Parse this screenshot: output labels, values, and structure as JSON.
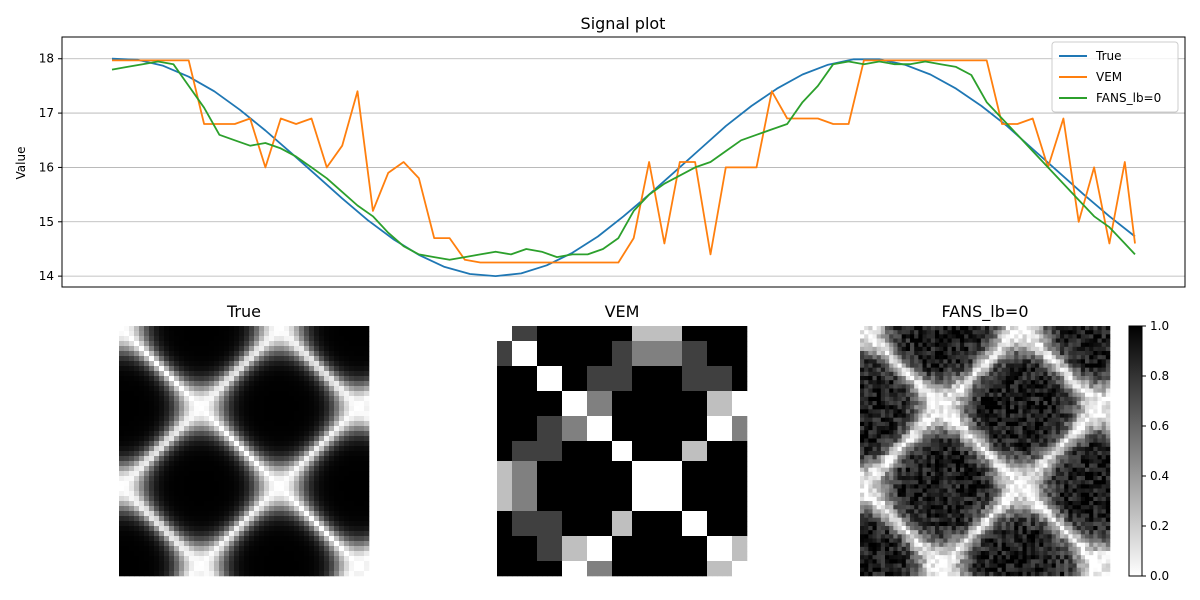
{
  "chart_data": [
    {
      "type": "line",
      "title": "Signal plot",
      "xlabel": "",
      "ylabel": "Value",
      "xlim": [
        0,
        200
      ],
      "ylim": [
        13.8,
        18.4
      ],
      "yticks": [
        14,
        15,
        16,
        17,
        18
      ],
      "grid": "horizontal",
      "legend_position": "top-right",
      "series": [
        {
          "name": "True",
          "color": "#1f77b4",
          "x": [
            0,
            5,
            10,
            15,
            20,
            25,
            30,
            35,
            40,
            45,
            50,
            55,
            60,
            65,
            70,
            75,
            80,
            85,
            90,
            95,
            100,
            105,
            110,
            115,
            120,
            125,
            130,
            135,
            140,
            145,
            150,
            155,
            160,
            165,
            170,
            175,
            180,
            185,
            190,
            195,
            200
          ],
          "y": [
            18.0,
            17.98,
            17.87,
            17.67,
            17.4,
            17.06,
            16.68,
            16.27,
            15.85,
            15.43,
            15.03,
            14.68,
            14.39,
            14.17,
            14.04,
            14.0,
            14.05,
            14.2,
            14.43,
            14.73,
            15.1,
            15.5,
            15.92,
            16.34,
            16.76,
            17.13,
            17.45,
            17.71,
            17.89,
            17.99,
            17.99,
            17.89,
            17.71,
            17.45,
            17.13,
            16.76,
            16.34,
            15.92,
            15.5,
            15.1,
            14.73
          ]
        },
        {
          "name": "VEM",
          "color": "#ff7f0e",
          "x": [
            0,
            3,
            6,
            9,
            12,
            15,
            18,
            21,
            24,
            27,
            30,
            33,
            36,
            39,
            42,
            45,
            48,
            51,
            54,
            57,
            60,
            63,
            66,
            69,
            72,
            75,
            78,
            81,
            84,
            87,
            90,
            93,
            96,
            99,
            102,
            105,
            108,
            111,
            114,
            117,
            120,
            123,
            126,
            129,
            132,
            135,
            138,
            141,
            144,
            147,
            150,
            153,
            156,
            159,
            162,
            165,
            168,
            171,
            174,
            177,
            180,
            183,
            186,
            189,
            192,
            195,
            198,
            200
          ],
          "y": [
            17.97,
            17.97,
            17.97,
            17.97,
            17.97,
            17.97,
            16.8,
            16.8,
            16.8,
            16.9,
            16.0,
            16.9,
            16.8,
            16.9,
            16.0,
            16.4,
            17.4,
            15.2,
            15.9,
            16.1,
            15.8,
            14.7,
            14.7,
            14.3,
            14.25,
            14.25,
            14.25,
            14.25,
            14.25,
            14.25,
            14.25,
            14.25,
            14.25,
            14.25,
            14.7,
            16.1,
            14.6,
            16.1,
            16.1,
            14.4,
            16.0,
            16.0,
            16.0,
            17.4,
            16.9,
            16.9,
            16.9,
            16.8,
            16.8,
            17.97,
            17.97,
            17.97,
            17.97,
            17.97,
            17.97,
            17.97,
            17.97,
            17.97,
            16.8,
            16.8,
            16.9,
            16.0,
            16.9,
            15.0,
            16.0,
            14.6,
            16.1,
            14.6
          ]
        },
        {
          "name": "FANS_lb=0",
          "color": "#2ca02c",
          "x": [
            0,
            3,
            6,
            9,
            12,
            15,
            18,
            21,
            24,
            27,
            30,
            33,
            36,
            39,
            42,
            45,
            48,
            51,
            54,
            57,
            60,
            63,
            66,
            69,
            72,
            75,
            78,
            81,
            84,
            87,
            90,
            93,
            96,
            99,
            102,
            105,
            108,
            111,
            114,
            117,
            120,
            123,
            126,
            129,
            132,
            135,
            138,
            141,
            144,
            147,
            150,
            153,
            156,
            159,
            162,
            165,
            168,
            171,
            174,
            177,
            180,
            183,
            186,
            189,
            192,
            195,
            198,
            200
          ],
          "y": [
            17.8,
            17.85,
            17.9,
            17.95,
            17.9,
            17.5,
            17.1,
            16.6,
            16.5,
            16.4,
            16.45,
            16.35,
            16.2,
            16.0,
            15.8,
            15.55,
            15.3,
            15.1,
            14.8,
            14.55,
            14.4,
            14.35,
            14.3,
            14.35,
            14.4,
            14.45,
            14.4,
            14.5,
            14.45,
            14.35,
            14.4,
            14.4,
            14.5,
            14.7,
            15.2,
            15.5,
            15.7,
            15.85,
            16.0,
            16.1,
            16.3,
            16.5,
            16.6,
            16.7,
            16.8,
            17.2,
            17.5,
            17.9,
            17.95,
            17.9,
            17.95,
            17.9,
            17.9,
            17.95,
            17.9,
            17.85,
            17.7,
            17.2,
            16.9,
            16.6,
            16.3,
            16.0,
            15.7,
            15.4,
            15.1,
            14.9,
            14.6,
            14.4
          ]
        }
      ]
    },
    {
      "type": "heatmap",
      "title": "True",
      "pattern": "sinusoidal-similarity"
    },
    {
      "type": "heatmap",
      "title": "VEM",
      "pattern": "blocky-similarity"
    },
    {
      "type": "heatmap",
      "title": "FANS_lb=0",
      "pattern": "noisy-similarity",
      "colorbar": {
        "min": 0.0,
        "max": 1.0,
        "ticks": [
          "0.0",
          "0.2",
          "0.4",
          "0.6",
          "0.8",
          "1.0"
        ],
        "colormap": "gray_r"
      }
    }
  ]
}
